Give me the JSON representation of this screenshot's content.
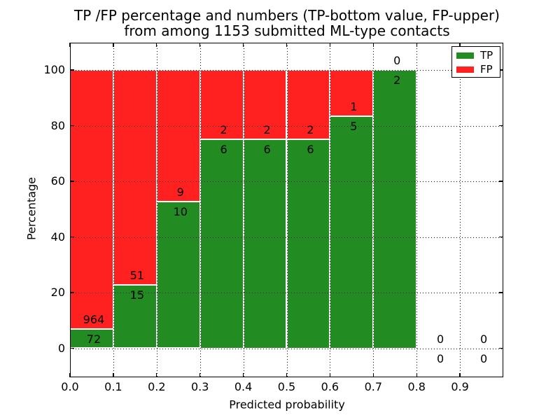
{
  "chart_data": {
    "type": "bar",
    "subtype": "stacked-percentage",
    "title_line1": "TP /FP percentage and numbers (TP-bottom value, FP-upper)",
    "title_line2": "from among 1153 submitted ML-type contacts",
    "total_contacts": 1153,
    "xlabel": "Predicted probability",
    "ylabel": "Percentage",
    "xlim": [
      0.0,
      1.0
    ],
    "ylim": [
      -10,
      110
    ],
    "xticks": [
      "0.0",
      "0.1",
      "0.2",
      "0.3",
      "0.4",
      "0.5",
      "0.6",
      "0.7",
      "0.8",
      "0.9"
    ],
    "yticks": [
      "0",
      "20",
      "40",
      "60",
      "80",
      "100"
    ],
    "grid": "dotted-black",
    "colors": {
      "tp": "#228b22",
      "fp": "#ff2020"
    },
    "legend": {
      "position": "upper-right",
      "entries": [
        {
          "label": "TP",
          "color": "#228b22"
        },
        {
          "label": "FP",
          "color": "#ff2020"
        }
      ]
    },
    "bins": [
      {
        "range": [
          0.0,
          0.1
        ],
        "tp": 72,
        "fp": 964
      },
      {
        "range": [
          0.1,
          0.2
        ],
        "tp": 15,
        "fp": 51
      },
      {
        "range": [
          0.2,
          0.3
        ],
        "tp": 10,
        "fp": 9
      },
      {
        "range": [
          0.3,
          0.4
        ],
        "tp": 6,
        "fp": 2
      },
      {
        "range": [
          0.4,
          0.5
        ],
        "tp": 6,
        "fp": 2
      },
      {
        "range": [
          0.5,
          0.6
        ],
        "tp": 6,
        "fp": 2
      },
      {
        "range": [
          0.6,
          0.7
        ],
        "tp": 5,
        "fp": 1
      },
      {
        "range": [
          0.7,
          0.8
        ],
        "tp": 2,
        "fp": 0
      },
      {
        "range": [
          0.8,
          0.9
        ],
        "tp": 0,
        "fp": 0
      },
      {
        "range": [
          0.9,
          1.0
        ],
        "tp": 0,
        "fp": 0
      }
    ]
  }
}
